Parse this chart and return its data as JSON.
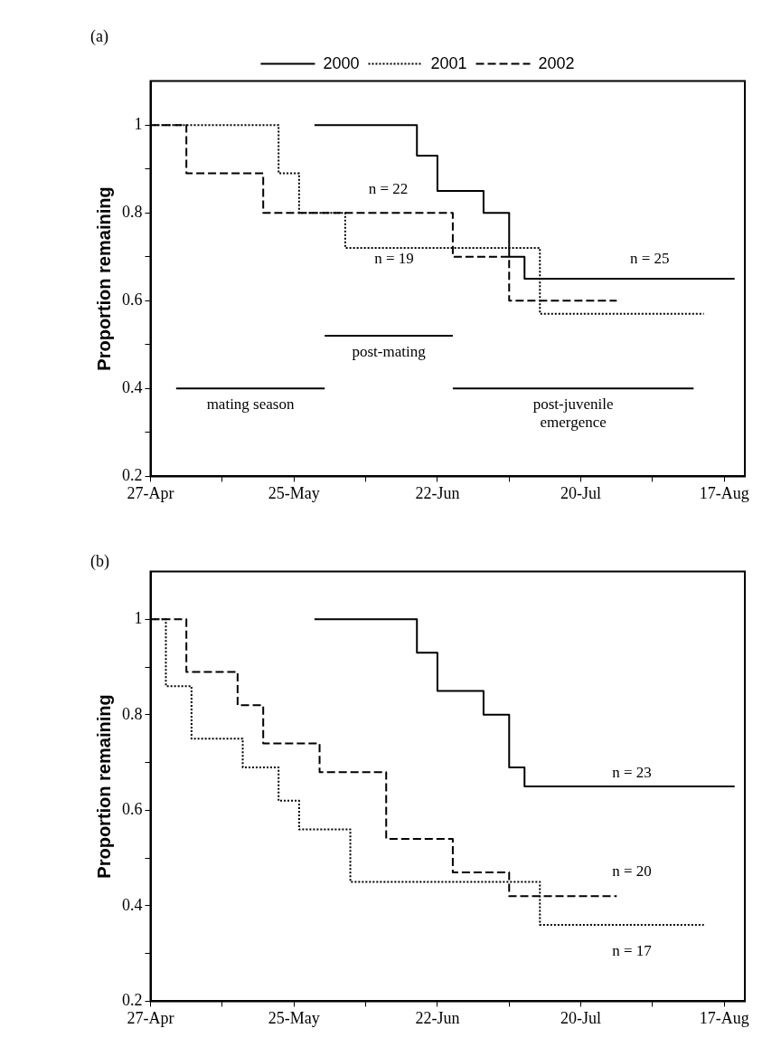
{
  "chart_data": [
    {
      "type": "step",
      "title": "(a)",
      "ylabel": "Proportion remaining",
      "legend": "top",
      "marker": "none",
      "grid": false,
      "xlim": [
        "--04-27",
        "--08-21"
      ],
      "xticks": [
        {
          "value": "--04-27",
          "label": "27-Apr"
        },
        {
          "value": "--05-11",
          "label": null
        },
        {
          "value": "--05-25",
          "label": "25-May"
        },
        {
          "value": "--06-08",
          "label": null
        },
        {
          "value": "--06-22",
          "label": "22-Jun"
        },
        {
          "value": "--07-06",
          "label": null
        },
        {
          "value": "--07-20",
          "label": "20-Jul"
        },
        {
          "value": "--08-03",
          "label": null
        },
        {
          "value": "--08-17",
          "label": "17-Aug"
        }
      ],
      "ylim": [
        0.2,
        1.1
      ],
      "yticks": [
        {
          "value": 0.2,
          "label": "0.2"
        },
        {
          "value": 0.3,
          "label": null
        },
        0.4,
        {
          "value": 0.5,
          "label": null
        },
        0.6,
        {
          "value": 0.7,
          "label": null
        },
        0.8,
        {
          "value": 0.9,
          "label": null
        },
        1
      ],
      "series": [
        {
          "name": "2000",
          "color": "#000000",
          "line_style": "solid",
          "x": [
            "--05-29",
            "--06-18",
            "--06-22",
            "--07-01",
            "--07-06",
            "--07-09",
            "--08-19"
          ],
          "values": [
            1,
            0.93,
            0.85,
            0.8,
            0.7,
            0.65,
            0.65
          ]
        },
        {
          "name": "2001",
          "color": "#000000",
          "line_style": "dotted",
          "x": [
            "--04-27",
            "--05-22",
            "--05-26",
            "--06-04",
            "--07-12",
            "--08-13"
          ],
          "values": [
            1,
            0.89,
            0.8,
            0.72,
            0.57,
            0.57
          ]
        },
        {
          "name": "2002",
          "color": "#000000",
          "line_style": "dashed",
          "x": [
            "--04-27",
            "--05-04",
            "--05-19",
            "--06-25",
            "--07-06",
            "--07-27"
          ],
          "values": [
            1,
            0.89,
            0.8,
            0.7,
            0.6,
            0.6
          ]
        },
        {
          "name": "mating season",
          "type": "line",
          "color": "#000000",
          "line_style": "solid",
          "x": [
            "--05-02",
            "--05-31"
          ],
          "values": [
            0.4,
            0.4
          ]
        },
        {
          "name": "post-mating",
          "type": "line",
          "color": "#000000",
          "line_style": "solid",
          "x": [
            "--05-31",
            "--06-25"
          ],
          "values": [
            0.52,
            0.52
          ]
        },
        {
          "name": "post-juvenile emergence",
          "type": "line",
          "color": "#000000",
          "line_style": "solid",
          "x": [
            "--06-25",
            "--08-11"
          ],
          "values": [
            0.4,
            0.4
          ]
        }
      ],
      "annotations": [
        "n = 22",
        "n = 19",
        "n = 25"
      ]
    },
    {
      "type": "step",
      "title": "(b)",
      "ylabel": "Proportion remaining",
      "legend": false,
      "marker": "none",
      "grid": false,
      "xlim": [
        "--04-27",
        "--08-21"
      ],
      "xticks": [
        {
          "value": "--04-27",
          "label": "27-Apr"
        },
        {
          "value": "--05-11",
          "label": null
        },
        {
          "value": "--05-25",
          "label": "25-May"
        },
        {
          "value": "--06-08",
          "label": null
        },
        {
          "value": "--06-22",
          "label": "22-Jun"
        },
        {
          "value": "--07-06",
          "label": null
        },
        {
          "value": "--07-20",
          "label": "20-Jul"
        },
        {
          "value": "--08-03",
          "label": null
        },
        {
          "value": "--08-17",
          "label": "17-Aug"
        }
      ],
      "ylim": [
        0.2,
        1.1
      ],
      "yticks": [
        {
          "value": 0.2,
          "label": "0.2"
        },
        {
          "value": 0.3,
          "label": null
        },
        0.4,
        {
          "value": 0.5,
          "label": null
        },
        0.6,
        {
          "value": 0.7,
          "label": null
        },
        0.8,
        {
          "value": 0.9,
          "label": null
        },
        1
      ],
      "series": [
        {
          "color": "#000000",
          "line_style": "solid",
          "x": [
            "--05-29",
            "--06-18",
            "--06-22",
            "--07-01",
            "--07-06",
            "--07-09",
            "--08-19"
          ],
          "values": [
            1,
            0.93,
            0.85,
            0.8,
            0.69,
            0.65,
            0.65
          ]
        },
        {
          "color": "#000000",
          "line_style": "dotted",
          "x": [
            "--04-27",
            "--04-30",
            "--05-05",
            "--05-15",
            "--05-22",
            "--05-26",
            "--06-05",
            "--07-12",
            "--08-13"
          ],
          "values": [
            1,
            0.86,
            0.75,
            0.69,
            0.62,
            0.56,
            0.45,
            0.36,
            0.36
          ]
        },
        {
          "color": "#000000",
          "line_style": "dashed",
          "x": [
            "--04-27",
            "--05-04",
            "--05-14",
            "--05-19",
            "--05-30",
            "--06-12",
            "--06-25",
            "--07-06",
            "--07-27"
          ],
          "values": [
            1,
            0.89,
            0.82,
            0.74,
            0.68,
            0.54,
            0.47,
            0.42,
            0.42
          ]
        }
      ],
      "annotations": [
        "n = 23",
        "n = 20",
        "n = 17"
      ]
    }
  ]
}
